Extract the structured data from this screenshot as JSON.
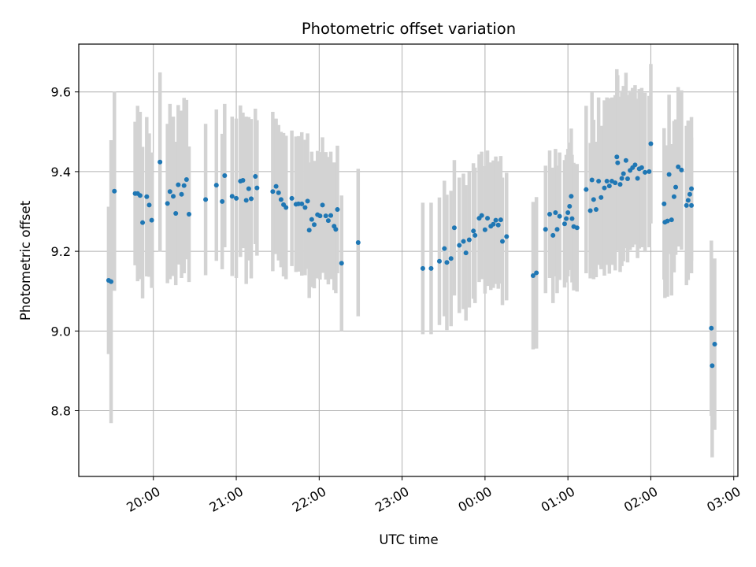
{
  "chart_data": {
    "type": "scatter",
    "title": "Photometric offset variation",
    "xlabel": "UTC time",
    "ylabel": "Photometric offset",
    "x_unit": "UTC clock time, hours past 20:00 (values beyond 4.0 wrap past midnight)",
    "xlim": [
      -0.9,
      7.05
    ],
    "ylim": [
      8.635,
      9.72
    ],
    "x_ticks": [
      0,
      1,
      2,
      3,
      4,
      5,
      6,
      7
    ],
    "x_tick_labels": [
      "20:00",
      "21:00",
      "22:00",
      "23:00",
      "00:00",
      "01:00",
      "02:00",
      "03:00"
    ],
    "y_ticks": [
      8.8,
      9.0,
      9.2,
      9.4,
      9.6
    ],
    "y_tick_labels": [
      "8.8",
      "9.0",
      "9.2",
      "9.4",
      "9.6"
    ],
    "grid": true,
    "marker_color": "#1f77b4",
    "errorbar_color": "#d3d3d3",
    "points": [
      [
        -0.54,
        9.127,
        0.185
      ],
      [
        -0.51,
        9.124,
        0.355
      ],
      [
        -0.47,
        9.351,
        0.25
      ],
      [
        -0.22,
        9.345,
        0.18
      ],
      [
        -0.19,
        9.345,
        0.22
      ],
      [
        -0.16,
        9.34,
        0.21
      ],
      [
        -0.13,
        9.272,
        0.19
      ],
      [
        -0.08,
        9.337,
        0.2
      ],
      [
        -0.05,
        9.316,
        0.18
      ],
      [
        -0.02,
        9.278,
        0.17
      ],
      [
        0.08,
        9.424,
        0.225
      ],
      [
        0.17,
        9.32,
        0.2
      ],
      [
        0.2,
        9.35,
        0.22
      ],
      [
        0.24,
        9.338,
        0.2
      ],
      [
        0.27,
        9.295,
        0.18
      ],
      [
        0.3,
        9.367,
        0.2
      ],
      [
        0.34,
        9.343,
        0.21
      ],
      [
        0.37,
        9.365,
        0.22
      ],
      [
        0.4,
        9.38,
        0.2
      ],
      [
        0.43,
        9.293,
        0.17
      ],
      [
        0.63,
        9.33,
        0.19
      ],
      [
        0.76,
        9.366,
        0.19
      ],
      [
        0.83,
        9.325,
        0.17
      ],
      [
        0.86,
        9.39,
        0.18
      ],
      [
        0.95,
        9.338,
        0.2
      ],
      [
        1.0,
        9.333,
        0.2
      ],
      [
        1.05,
        9.376,
        0.19
      ],
      [
        1.08,
        9.378,
        0.17
      ],
      [
        1.12,
        9.328,
        0.21
      ],
      [
        1.15,
        9.357,
        0.18
      ],
      [
        1.18,
        9.332,
        0.2
      ],
      [
        1.23,
        9.388,
        0.17
      ],
      [
        1.25,
        9.359,
        0.17
      ],
      [
        1.44,
        9.35,
        0.2
      ],
      [
        1.48,
        9.363,
        0.17
      ],
      [
        1.51,
        9.347,
        0.17
      ],
      [
        1.54,
        9.33,
        0.17
      ],
      [
        1.57,
        9.317,
        0.18
      ],
      [
        1.6,
        9.31,
        0.18
      ],
      [
        1.67,
        9.333,
        0.17
      ],
      [
        1.72,
        9.318,
        0.17
      ],
      [
        1.75,
        9.319,
        0.17
      ],
      [
        1.79,
        9.319,
        0.18
      ],
      [
        1.83,
        9.31,
        0.17
      ],
      [
        1.86,
        9.326,
        0.17
      ],
      [
        1.88,
        9.253,
        0.17
      ],
      [
        1.91,
        9.28,
        0.17
      ],
      [
        1.94,
        9.267,
        0.16
      ],
      [
        1.98,
        9.292,
        0.16
      ],
      [
        2.01,
        9.289,
        0.16
      ],
      [
        2.04,
        9.316,
        0.17
      ],
      [
        2.08,
        9.289,
        0.16
      ],
      [
        2.11,
        9.277,
        0.16
      ],
      [
        2.14,
        9.29,
        0.16
      ],
      [
        2.18,
        9.263,
        0.16
      ],
      [
        2.2,
        9.255,
        0.16
      ],
      [
        2.22,
        9.305,
        0.16
      ],
      [
        2.27,
        9.17,
        0.17
      ],
      [
        2.47,
        9.222,
        0.185
      ],
      [
        3.25,
        9.157,
        0.165
      ],
      [
        3.35,
        9.157,
        0.165
      ],
      [
        3.45,
        9.175,
        0.16
      ],
      [
        3.51,
        9.207,
        0.17
      ],
      [
        3.54,
        9.172,
        0.17
      ],
      [
        3.59,
        9.182,
        0.17
      ],
      [
        3.63,
        9.259,
        0.17
      ],
      [
        3.69,
        9.215,
        0.17
      ],
      [
        3.74,
        9.225,
        0.17
      ],
      [
        3.77,
        9.196,
        0.17
      ],
      [
        3.81,
        9.229,
        0.17
      ],
      [
        3.86,
        9.251,
        0.17
      ],
      [
        3.88,
        9.24,
        0.17
      ],
      [
        3.93,
        9.283,
        0.16
      ],
      [
        3.96,
        9.29,
        0.16
      ],
      [
        4.0,
        9.254,
        0.16
      ],
      [
        4.03,
        9.283,
        0.17
      ],
      [
        4.07,
        9.263,
        0.16
      ],
      [
        4.1,
        9.268,
        0.16
      ],
      [
        4.13,
        9.278,
        0.16
      ],
      [
        4.16,
        9.266,
        0.16
      ],
      [
        4.19,
        9.279,
        0.16
      ],
      [
        4.21,
        9.225,
        0.16
      ],
      [
        4.26,
        9.237,
        0.16
      ],
      [
        4.58,
        9.139,
        0.185
      ],
      [
        4.62,
        9.146,
        0.19
      ],
      [
        4.73,
        9.255,
        0.16
      ],
      [
        4.78,
        9.293,
        0.16
      ],
      [
        4.82,
        9.24,
        0.17
      ],
      [
        4.85,
        9.297,
        0.16
      ],
      [
        4.87,
        9.255,
        0.16
      ],
      [
        4.9,
        9.288,
        0.16
      ],
      [
        4.96,
        9.269,
        0.16
      ],
      [
        4.98,
        9.282,
        0.16
      ],
      [
        5.0,
        9.297,
        0.16
      ],
      [
        5.02,
        9.313,
        0.16
      ],
      [
        5.04,
        9.338,
        0.17
      ],
      [
        5.05,
        9.282,
        0.16
      ],
      [
        5.07,
        9.262,
        0.16
      ],
      [
        5.11,
        9.259,
        0.16
      ],
      [
        5.22,
        9.355,
        0.21
      ],
      [
        5.27,
        9.302,
        0.17
      ],
      [
        5.29,
        9.379,
        0.22
      ],
      [
        5.31,
        9.33,
        0.2
      ],
      [
        5.34,
        9.305,
        0.17
      ],
      [
        5.37,
        9.376,
        0.21
      ],
      [
        5.4,
        9.335,
        0.18
      ],
      [
        5.44,
        9.359,
        0.22
      ],
      [
        5.47,
        9.376,
        0.21
      ],
      [
        5.5,
        9.364,
        0.22
      ],
      [
        5.53,
        9.376,
        0.21
      ],
      [
        5.57,
        9.372,
        0.22
      ],
      [
        5.59,
        9.437,
        0.22
      ],
      [
        5.6,
        9.422,
        0.22
      ],
      [
        5.63,
        9.368,
        0.22
      ],
      [
        5.65,
        9.383,
        0.22
      ],
      [
        5.67,
        9.395,
        0.22
      ],
      [
        5.7,
        9.428,
        0.22
      ],
      [
        5.72,
        9.382,
        0.21
      ],
      [
        5.75,
        9.403,
        0.2
      ],
      [
        5.78,
        9.41,
        0.2
      ],
      [
        5.81,
        9.417,
        0.2
      ],
      [
        5.84,
        9.383,
        0.2
      ],
      [
        5.86,
        9.407,
        0.2
      ],
      [
        5.89,
        9.41,
        0.2
      ],
      [
        5.93,
        9.398,
        0.2
      ],
      [
        5.98,
        9.4,
        0.19
      ],
      [
        6.0,
        9.47,
        0.2
      ],
      [
        6.16,
        9.319,
        0.19
      ],
      [
        6.17,
        9.273,
        0.19
      ],
      [
        6.2,
        9.276,
        0.19
      ],
      [
        6.22,
        9.393,
        0.2
      ],
      [
        6.25,
        9.279,
        0.19
      ],
      [
        6.28,
        9.337,
        0.19
      ],
      [
        6.3,
        9.361,
        0.17
      ],
      [
        6.33,
        9.412,
        0.2
      ],
      [
        6.37,
        9.404,
        0.2
      ],
      [
        6.43,
        9.315,
        0.2
      ],
      [
        6.45,
        9.328,
        0.2
      ],
      [
        6.47,
        9.343,
        0.18
      ],
      [
        6.49,
        9.357,
        0.18
      ],
      [
        6.49,
        9.315,
        0.17
      ],
      [
        6.73,
        9.007,
        0.22
      ],
      [
        6.74,
        8.913,
        0.23
      ],
      [
        6.77,
        8.967,
        0.215
      ]
    ]
  }
}
